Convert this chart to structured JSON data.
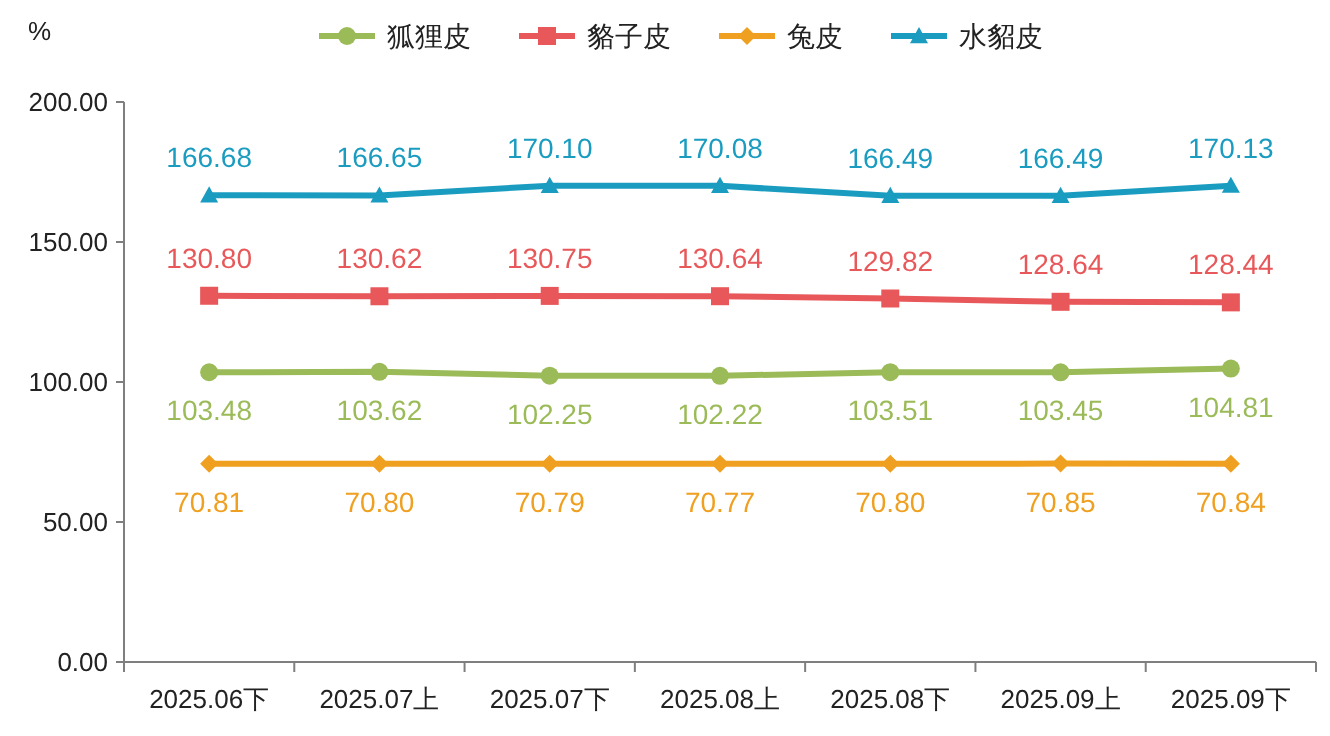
{
  "chart_data": {
    "type": "line",
    "ylabel": "%",
    "categories": [
      "2025.06下",
      "2025.07上",
      "2025.07下",
      "2025.08上",
      "2025.08下",
      "2025.09上",
      "2025.09下"
    ],
    "series": [
      {
        "name": "狐狸皮",
        "color": "#9bbb59",
        "marker": "circle",
        "values": [
          103.48,
          103.62,
          102.25,
          102.22,
          103.51,
          103.45,
          104.81
        ],
        "value_labels": [
          "103.48",
          "103.62",
          "102.25",
          "102.22",
          "103.51",
          "103.45",
          "104.81"
        ]
      },
      {
        "name": "貉子皮",
        "color": "#e8585a",
        "marker": "square",
        "values": [
          130.8,
          130.62,
          130.75,
          130.64,
          129.82,
          128.64,
          128.44
        ],
        "value_labels": [
          "130.80",
          "130.62",
          "130.75",
          "130.64",
          "129.82",
          "128.64",
          "128.44"
        ]
      },
      {
        "name": "兔皮",
        "color": "#f0a020",
        "marker": "diamond",
        "values": [
          70.81,
          70.8,
          70.79,
          70.77,
          70.8,
          70.85,
          70.84
        ],
        "value_labels": [
          "70.81",
          "70.80",
          "70.79",
          "70.77",
          "70.80",
          "70.85",
          "70.84"
        ]
      },
      {
        "name": "水貂皮",
        "color": "#1a9cc0",
        "marker": "triangle",
        "values": [
          166.68,
          166.65,
          170.1,
          170.08,
          166.49,
          166.49,
          170.13
        ],
        "value_labels": [
          "166.68",
          "166.65",
          "170.10",
          "170.08",
          "166.49",
          "166.49",
          "170.13"
        ]
      }
    ],
    "ylim": [
      0,
      200
    ],
    "yticks": [
      {
        "value": 0,
        "label": "0.00"
      },
      {
        "value": 50,
        "label": "50.00"
      },
      {
        "value": 100,
        "label": "100.00"
      },
      {
        "value": 150,
        "label": "150.00"
      },
      {
        "value": 200,
        "label": "200.00"
      }
    ],
    "grid": false,
    "legend": "top",
    "line_style": "solid"
  }
}
